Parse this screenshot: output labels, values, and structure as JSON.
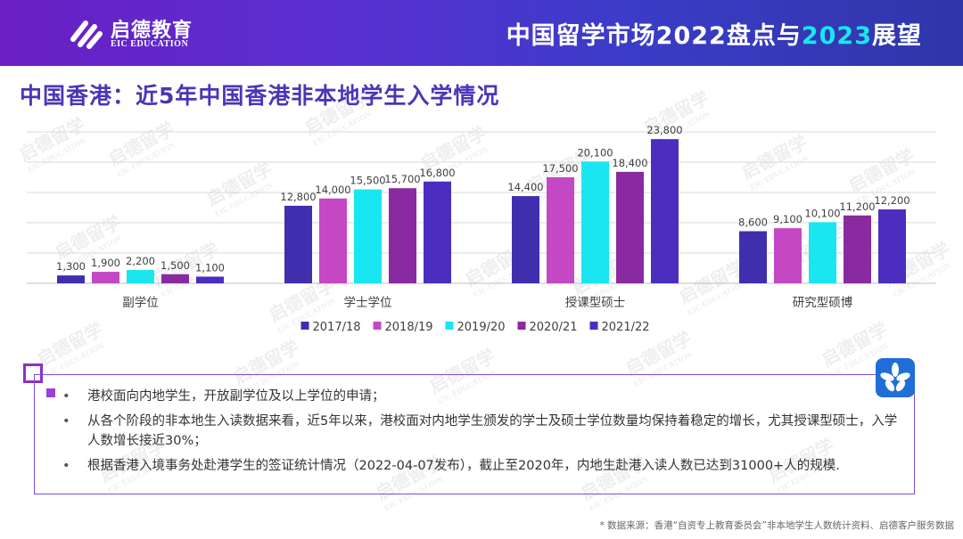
{
  "header": {
    "logo_cn": "启德教育",
    "logo_en": "EIC EDUCATION",
    "title_part1": "中国留学市场2022盘点与",
    "title_hl": "2023",
    "title_part2": "展望"
  },
  "page_title": "中国香港：近5年中国香港非本地学生入学情况",
  "watermark": {
    "cn": "启德留学",
    "en": "EIC EDUCATION"
  },
  "chart_data": {
    "type": "bar",
    "categories": [
      "副学位",
      "学士学位",
      "授课型硕士",
      "研究型硕博"
    ],
    "series": [
      {
        "name": "2017/18",
        "color": "#3f2fae",
        "values": [
          1300,
          12800,
          14400,
          8600
        ]
      },
      {
        "name": "2018/19",
        "color": "#c447c4",
        "values": [
          1900,
          14000,
          17500,
          9100
        ]
      },
      {
        "name": "2019/20",
        "color": "#19e6f0",
        "values": [
          2200,
          15500,
          20100,
          10100
        ]
      },
      {
        "name": "2020/21",
        "color": "#8a2aa0",
        "values": [
          1500,
          15700,
          18400,
          11200
        ]
      },
      {
        "name": "2021/22",
        "color": "#4b2ec0",
        "values": [
          1100,
          16800,
          23800,
          12200
        ]
      }
    ],
    "data_labels": [
      [
        "1,300",
        "12,800",
        "14,400",
        "8,600"
      ],
      [
        "1,900",
        "14,000",
        "17,500",
        "9,100"
      ],
      [
        "2,200",
        "15,500",
        "20,100",
        "10,100"
      ],
      [
        "1,500",
        "15,700",
        "18,400",
        "11,200"
      ],
      [
        "1,100",
        "16,800",
        "23,800",
        "12,200"
      ]
    ],
    "ylim": [
      0,
      25000
    ],
    "grid": true,
    "legend": "bottom"
  },
  "bullets": [
    "港校面向内地学生，开放副学位及以上学位的申请；",
    "从各个阶段的非本地生入读数据来看，近5年以来，港校面对内地学生颁发的学士及硕士学位数量均保持着稳定的增长，尤其授课型硕士，入学人数增长接近30%；",
    "根据香港入境事务处赴港学生的签证统计情况（2022-04-07发布），截止至2020年，内地生赴港入读人数已达到31000+人的规模."
  ],
  "source": "* 数据来源：香港“自资专上教育委员会”非本地学生人数统计资料、启德客户服务数据"
}
